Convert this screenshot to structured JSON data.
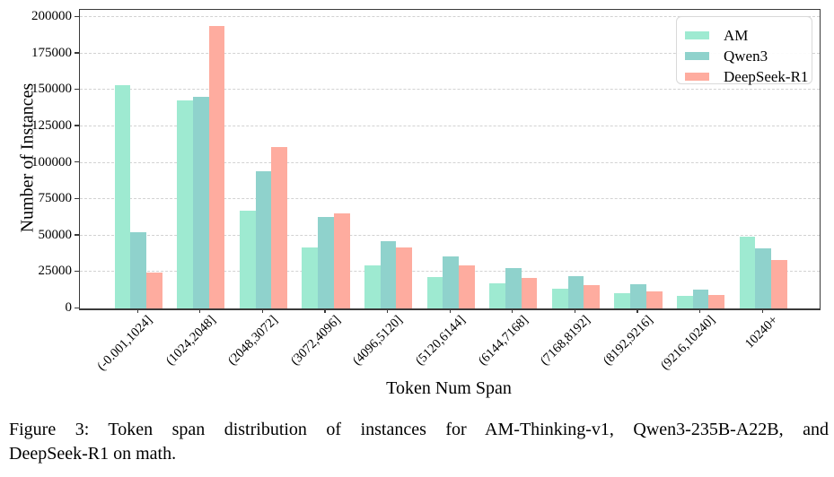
{
  "figure": {
    "caption": {
      "line1": "Figure 3: Token span distribution of instances for AM-Thinking-v1, Qwen3-235B-A22B, and",
      "line2": "DeepSeek-R1 on math."
    }
  },
  "chart_data": {
    "type": "bar",
    "title": "",
    "xlabel": "Token Num Span",
    "ylabel": "Number of Instances",
    "ylim": [
      0,
      205000
    ],
    "yticks": [
      0,
      25000,
      50000,
      75000,
      100000,
      125000,
      150000,
      175000,
      200000
    ],
    "grid": "horizontal-dashed",
    "legend_position": "upper-right",
    "categories": [
      "(-0.001,1024]",
      "(1024,2048]",
      "(2048,3072]",
      "(3072,4096]",
      "(4096,5120]",
      "(5120,6144]",
      "(6144,7168]",
      "(7168,8192]",
      "(8192,9216]",
      "(9216,10240]",
      "10240+"
    ],
    "series": [
      {
        "name": "AM",
        "color": "#9EEAD1",
        "values": [
          153000,
          143000,
          67000,
          42000,
          29500,
          21500,
          17000,
          13500,
          10500,
          8500,
          49000
        ]
      },
      {
        "name": "Qwen3",
        "color": "#8FD2CC",
        "values": [
          52500,
          145000,
          94000,
          62500,
          46000,
          36000,
          27500,
          22000,
          16800,
          12800,
          41500
        ]
      },
      {
        "name": "DeepSeek-R1",
        "color": "#FEAC9F",
        "values": [
          24500,
          194000,
          111000,
          65000,
          42000,
          29500,
          21000,
          16000,
          12000,
          9000,
          33000
        ]
      }
    ]
  }
}
